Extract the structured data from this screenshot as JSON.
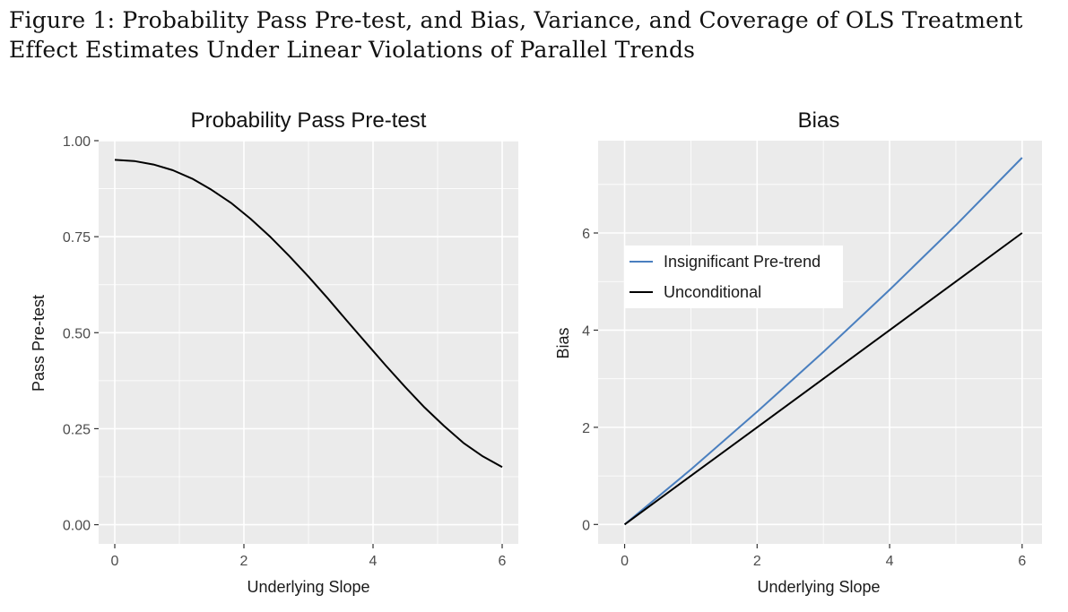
{
  "figure": {
    "caption": "Figure 1: Probability Pass Pre-test, and Bias, Variance, and Coverage of OLS Treatment Effect Estimates Under Linear Violations of Parallel Trends"
  },
  "colors": {
    "panel_bg": "#EBEBEB",
    "grid": "#FFFFFF",
    "unconditional": "#000000",
    "insignificant": "#4A7FBF"
  },
  "chart_data": [
    {
      "type": "line",
      "title": "Probability Pass Pre-test",
      "xlabel": "Underlying Slope",
      "ylabel": "Pass Pre-test",
      "xlim": [
        -0.25,
        6.25
      ],
      "ylim": [
        -0.05,
        1.0
      ],
      "x_ticks": [
        0,
        2,
        4,
        6
      ],
      "x_tick_labels": [
        "0",
        "2",
        "4",
        "6"
      ],
      "y_ticks": [
        0,
        0.25,
        0.5,
        0.75,
        1.0
      ],
      "y_tick_labels": [
        "0.00",
        "0.25",
        "0.50",
        "0.75",
        "1.00"
      ],
      "grid": true,
      "series": [
        {
          "color": "#000000",
          "x": [
            0,
            0.3,
            0.6,
            0.9,
            1.2,
            1.5,
            1.8,
            2.1,
            2.4,
            2.7,
            3.0,
            3.3,
            3.6,
            3.9,
            4.2,
            4.5,
            4.8,
            5.1,
            5.4,
            5.7,
            6.0
          ],
          "y": [
            0.95,
            0.947,
            0.938,
            0.923,
            0.901,
            0.872,
            0.838,
            0.797,
            0.751,
            0.7,
            0.646,
            0.589,
            0.53,
            0.472,
            0.414,
            0.358,
            0.305,
            0.257,
            0.213,
            0.178,
            0.15
          ]
        }
      ]
    },
    {
      "type": "line",
      "title": "Bias",
      "xlabel": "Underlying Slope",
      "ylabel": "Bias",
      "xlim": [
        -0.4,
        6.3
      ],
      "ylim": [
        -0.4,
        7.9
      ],
      "x_ticks": [
        0,
        2,
        4,
        6
      ],
      "x_tick_labels": [
        "0",
        "2",
        "4",
        "6"
      ],
      "y_ticks": [
        0,
        2,
        4,
        6
      ],
      "y_tick_labels": [
        "0",
        "2",
        "4",
        "6"
      ],
      "grid": true,
      "legend_position": "top-left",
      "series": [
        {
          "name": "Insignificant Pre-trend",
          "color": "#4A7FBF",
          "x": [
            0,
            1,
            2,
            3,
            4,
            5,
            6
          ],
          "y": [
            0,
            1.13,
            2.32,
            3.55,
            4.83,
            6.16,
            7.55
          ]
        },
        {
          "name": "Unconditional",
          "color": "#000000",
          "x": [
            0,
            1,
            2,
            3,
            4,
            5,
            6
          ],
          "y": [
            0,
            1,
            2,
            3,
            4,
            5,
            6
          ]
        }
      ]
    }
  ]
}
